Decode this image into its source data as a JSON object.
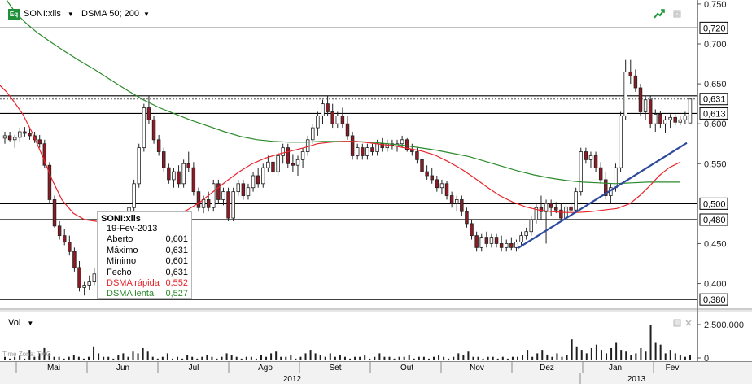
{
  "header": {
    "badge": "Eq",
    "symbol": "SONI:xlis",
    "indicator": "DSMA 50; 200"
  },
  "colors": {
    "up": "#ffffff",
    "down": "#8e1b24",
    "fast_ma": "#e8242a",
    "slow_ma": "#2a8a2a",
    "trendline": "#2e4a9e",
    "hline": "#000000",
    "volume": "#1f1f1f",
    "axis_bg": "#ffffff"
  },
  "tooltip": {
    "symbol": "SONI:xlis",
    "date": "19-Fev-2013",
    "rows": [
      {
        "label": "Aberto",
        "value": "0,601",
        "color": "#000000"
      },
      {
        "label": "Máximo",
        "value": "0,631",
        "color": "#000000"
      },
      {
        "label": "Mínimo",
        "value": "0,601",
        "color": "#000000"
      },
      {
        "label": "Fecho",
        "value": "0,631",
        "color": "#000000"
      },
      {
        "label": "DSMA rápida",
        "value": "0,552",
        "color": "#e8242a"
      },
      {
        "label": "DSMA lenta",
        "value": "0,527",
        "color": "#2a8a2a"
      }
    ]
  },
  "volume_panel": {
    "title": "Vol",
    "ticks": [
      "2.500.000",
      "0"
    ]
  },
  "timezone_label": "Time Zone: TMG",
  "chart_data": {
    "type": "candlestick",
    "price_axis": {
      "ylim": [
        0.37,
        0.755
      ],
      "ticks": [
        {
          "v": 0.75,
          "label": "0,750"
        },
        {
          "v": 0.7,
          "label": "0,700"
        },
        {
          "v": 0.65,
          "label": "0,650"
        },
        {
          "v": 0.6,
          "label": "0,600"
        },
        {
          "v": 0.55,
          "label": "0,550"
        },
        {
          "v": 0.45,
          "label": "0,450"
        },
        {
          "v": 0.4,
          "label": "0,400"
        }
      ],
      "boxed_labels": [
        {
          "v": 0.72,
          "label": "0,720"
        },
        {
          "v": 0.631,
          "label": "0,631"
        },
        {
          "v": 0.613,
          "label": "0,613"
        },
        {
          "v": 0.5,
          "label": "0,500"
        },
        {
          "v": 0.48,
          "label": "0,480"
        },
        {
          "v": 0.38,
          "label": "0,380"
        }
      ]
    },
    "horizontal_lines": [
      0.72,
      0.635,
      0.613,
      0.5,
      0.48,
      0.38
    ],
    "dotted_line": 0.631,
    "months": [
      "Mai",
      "Jun",
      "Jul",
      "Ago",
      "Set",
      "Out",
      "Nov",
      "Dez",
      "Jan",
      "Fev"
    ],
    "years": [
      "2012",
      "2013"
    ],
    "candles": [
      [
        0.582,
        0.59,
        0.575,
        0.585
      ],
      [
        0.585,
        0.59,
        0.578,
        0.58
      ],
      [
        0.58,
        0.586,
        0.57,
        0.583
      ],
      [
        0.583,
        0.595,
        0.578,
        0.59
      ],
      [
        0.59,
        0.596,
        0.584,
        0.588
      ],
      [
        0.588,
        0.593,
        0.58,
        0.585
      ],
      [
        0.585,
        0.59,
        0.576,
        0.58
      ],
      [
        0.58,
        0.586,
        0.57,
        0.575
      ],
      [
        0.575,
        0.58,
        0.545,
        0.548
      ],
      [
        0.548,
        0.552,
        0.5,
        0.505
      ],
      [
        0.505,
        0.51,
        0.47,
        0.472
      ],
      [
        0.472,
        0.478,
        0.455,
        0.46
      ],
      [
        0.46,
        0.468,
        0.448,
        0.452
      ],
      [
        0.452,
        0.46,
        0.435,
        0.44
      ],
      [
        0.44,
        0.445,
        0.415,
        0.42
      ],
      [
        0.42,
        0.428,
        0.39,
        0.395
      ],
      [
        0.395,
        0.402,
        0.385,
        0.398
      ],
      [
        0.398,
        0.41,
        0.392,
        0.402
      ],
      [
        0.402,
        0.42,
        0.398,
        0.412
      ],
      [
        0.412,
        0.425,
        0.405,
        0.408
      ],
      [
        0.408,
        0.44,
        0.405,
        0.435
      ],
      [
        0.435,
        0.462,
        0.43,
        0.455
      ],
      [
        0.455,
        0.47,
        0.44,
        0.445
      ],
      [
        0.445,
        0.468,
        0.44,
        0.462
      ],
      [
        0.462,
        0.482,
        0.455,
        0.475
      ],
      [
        0.475,
        0.5,
        0.47,
        0.495
      ],
      [
        0.495,
        0.53,
        0.49,
        0.525
      ],
      [
        0.525,
        0.575,
        0.52,
        0.57
      ],
      [
        0.57,
        0.625,
        0.565,
        0.62
      ],
      [
        0.62,
        0.635,
        0.6,
        0.605
      ],
      [
        0.605,
        0.61,
        0.575,
        0.58
      ],
      [
        0.58,
        0.586,
        0.56,
        0.565
      ],
      [
        0.565,
        0.57,
        0.54,
        0.545
      ],
      [
        0.545,
        0.55,
        0.525,
        0.53
      ],
      [
        0.53,
        0.545,
        0.52,
        0.54
      ],
      [
        0.54,
        0.548,
        0.52,
        0.525
      ],
      [
        0.525,
        0.555,
        0.52,
        0.55
      ],
      [
        0.55,
        0.565,
        0.54,
        0.545
      ],
      [
        0.545,
        0.552,
        0.51,
        0.515
      ],
      [
        0.515,
        0.52,
        0.49,
        0.495
      ],
      [
        0.495,
        0.51,
        0.488,
        0.505
      ],
      [
        0.505,
        0.515,
        0.49,
        0.495
      ],
      [
        0.495,
        0.53,
        0.49,
        0.525
      ],
      [
        0.525,
        0.53,
        0.5,
        0.505
      ],
      [
        0.505,
        0.52,
        0.498,
        0.515
      ],
      [
        0.515,
        0.52,
        0.478,
        0.482
      ],
      [
        0.482,
        0.52,
        0.478,
        0.515
      ],
      [
        0.515,
        0.53,
        0.51,
        0.525
      ],
      [
        0.525,
        0.53,
        0.505,
        0.51
      ],
      [
        0.51,
        0.525,
        0.505,
        0.52
      ],
      [
        0.52,
        0.54,
        0.515,
        0.535
      ],
      [
        0.535,
        0.545,
        0.52,
        0.525
      ],
      [
        0.525,
        0.55,
        0.52,
        0.545
      ],
      [
        0.545,
        0.56,
        0.54,
        0.552
      ],
      [
        0.552,
        0.56,
        0.535,
        0.54
      ],
      [
        0.54,
        0.565,
        0.535,
        0.56
      ],
      [
        0.56,
        0.575,
        0.55,
        0.57
      ],
      [
        0.57,
        0.575,
        0.545,
        0.55
      ],
      [
        0.55,
        0.562,
        0.54,
        0.548
      ],
      [
        0.548,
        0.56,
        0.535,
        0.555
      ],
      [
        0.555,
        0.57,
        0.545,
        0.565
      ],
      [
        0.565,
        0.585,
        0.56,
        0.58
      ],
      [
        0.58,
        0.6,
        0.575,
        0.595
      ],
      [
        0.595,
        0.615,
        0.585,
        0.61
      ],
      [
        0.61,
        0.63,
        0.6,
        0.625
      ],
      [
        0.625,
        0.635,
        0.61,
        0.615
      ],
      [
        0.615,
        0.625,
        0.595,
        0.6
      ],
      [
        0.6,
        0.615,
        0.595,
        0.61
      ],
      [
        0.61,
        0.62,
        0.595,
        0.6
      ],
      [
        0.6,
        0.61,
        0.58,
        0.585
      ],
      [
        0.585,
        0.59,
        0.555,
        0.56
      ],
      [
        0.56,
        0.575,
        0.555,
        0.57
      ],
      [
        0.57,
        0.575,
        0.555,
        0.56
      ],
      [
        0.56,
        0.575,
        0.555,
        0.57
      ],
      [
        0.57,
        0.575,
        0.56,
        0.565
      ],
      [
        0.565,
        0.58,
        0.56,
        0.575
      ],
      [
        0.575,
        0.582,
        0.565,
        0.57
      ],
      [
        0.57,
        0.58,
        0.565,
        0.575
      ],
      [
        0.575,
        0.58,
        0.568,
        0.572
      ],
      [
        0.572,
        0.58,
        0.565,
        0.575
      ],
      [
        0.575,
        0.585,
        0.57,
        0.58
      ],
      [
        0.58,
        0.582,
        0.565,
        0.568
      ],
      [
        0.568,
        0.575,
        0.56,
        0.565
      ],
      [
        0.565,
        0.57,
        0.55,
        0.555
      ],
      [
        0.555,
        0.56,
        0.535,
        0.54
      ],
      [
        0.54,
        0.548,
        0.53,
        0.535
      ],
      [
        0.535,
        0.545,
        0.525,
        0.53
      ],
      [
        0.53,
        0.535,
        0.515,
        0.52
      ],
      [
        0.52,
        0.53,
        0.512,
        0.525
      ],
      [
        0.525,
        0.528,
        0.505,
        0.51
      ],
      [
        0.51,
        0.515,
        0.495,
        0.5
      ],
      [
        0.5,
        0.51,
        0.49,
        0.505
      ],
      [
        0.505,
        0.51,
        0.485,
        0.49
      ],
      [
        0.49,
        0.495,
        0.47,
        0.475
      ],
      [
        0.475,
        0.48,
        0.455,
        0.46
      ],
      [
        0.46,
        0.465,
        0.44,
        0.445
      ],
      [
        0.445,
        0.462,
        0.44,
        0.458
      ],
      [
        0.458,
        0.465,
        0.445,
        0.45
      ],
      [
        0.45,
        0.462,
        0.445,
        0.458
      ],
      [
        0.458,
        0.462,
        0.445,
        0.45
      ],
      [
        0.45,
        0.46,
        0.44,
        0.445
      ],
      [
        0.445,
        0.455,
        0.44,
        0.45
      ],
      [
        0.45,
        0.458,
        0.442,
        0.445
      ],
      [
        0.445,
        0.455,
        0.44,
        0.452
      ],
      [
        0.452,
        0.465,
        0.448,
        0.46
      ],
      [
        0.46,
        0.47,
        0.455,
        0.465
      ],
      [
        0.465,
        0.485,
        0.46,
        0.48
      ],
      [
        0.48,
        0.5,
        0.475,
        0.495
      ],
      [
        0.495,
        0.51,
        0.48,
        0.49
      ],
      [
        0.49,
        0.505,
        0.45,
        0.5
      ],
      [
        0.5,
        0.505,
        0.485,
        0.495
      ],
      [
        0.495,
        0.502,
        0.488,
        0.492
      ],
      [
        0.492,
        0.5,
        0.478,
        0.482
      ],
      [
        0.482,
        0.5,
        0.478,
        0.496
      ],
      [
        0.496,
        0.502,
        0.488,
        0.492
      ],
      [
        0.492,
        0.52,
        0.488,
        0.515
      ],
      [
        0.515,
        0.57,
        0.51,
        0.565
      ],
      [
        0.565,
        0.57,
        0.55,
        0.555
      ],
      [
        0.555,
        0.565,
        0.545,
        0.56
      ],
      [
        0.56,
        0.565,
        0.54,
        0.545
      ],
      [
        0.545,
        0.552,
        0.525,
        0.53
      ],
      [
        0.53,
        0.54,
        0.505,
        0.51
      ],
      [
        0.51,
        0.525,
        0.5,
        0.52
      ],
      [
        0.52,
        0.55,
        0.515,
        0.545
      ],
      [
        0.545,
        0.615,
        0.54,
        0.61
      ],
      [
        0.61,
        0.68,
        0.605,
        0.665
      ],
      [
        0.665,
        0.68,
        0.65,
        0.66
      ],
      [
        0.66,
        0.668,
        0.64,
        0.645
      ],
      [
        0.645,
        0.65,
        0.61,
        0.615
      ],
      [
        0.615,
        0.635,
        0.605,
        0.63
      ],
      [
        0.63,
        0.635,
        0.595,
        0.6
      ],
      [
        0.6,
        0.618,
        0.59,
        0.612
      ],
      [
        0.612,
        0.616,
        0.595,
        0.6
      ],
      [
        0.6,
        0.61,
        0.588,
        0.605
      ],
      [
        0.605,
        0.612,
        0.595,
        0.608
      ],
      [
        0.608,
        0.612,
        0.598,
        0.602
      ],
      [
        0.602,
        0.61,
        0.598,
        0.605
      ],
      [
        0.605,
        0.615,
        0.6,
        0.61
      ],
      [
        0.601,
        0.631,
        0.601,
        0.631
      ]
    ],
    "volume": [
      0.1,
      0.05,
      0.1,
      0.15,
      0.05,
      0.3,
      0.1,
      0.2,
      0.35,
      0.2,
      0.1,
      0.1,
      0.05,
      0.1,
      0.15,
      0.1,
      0.05,
      0.1,
      0.4,
      0.2,
      0.1,
      0.1,
      0.05,
      0.15,
      0.2,
      0.1,
      0.25,
      0.2,
      0.35,
      0.25,
      0.1,
      0.05,
      0.1,
      0.2,
      0.05,
      0.1,
      0.05,
      0.15,
      0.1,
      0.05,
      0.1,
      0.15,
      0.1,
      0.05,
      0.1,
      0.2,
      0.15,
      0.1,
      0.05,
      0.1,
      0.1,
      0.05,
      0.15,
      0.1,
      0.2,
      0.25,
      0.1,
      0.1,
      0.15,
      0.05,
      0.1,
      0.2,
      0.3,
      0.2,
      0.15,
      0.1,
      0.2,
      0.1,
      0.15,
      0.1,
      0.05,
      0.1,
      0.1,
      0.15,
      0.05,
      0.1,
      0.2,
      0.1,
      0.1,
      0.05,
      0.1,
      0.1,
      0.15,
      0.05,
      0.1,
      0.1,
      0.05,
      0.1,
      0.15,
      0.1,
      0.05,
      0.1,
      0.2,
      0.15,
      0.25,
      0.1,
      0.1,
      0.05,
      0.1,
      0.1,
      0.05,
      0.1,
      0.05,
      0.1,
      0.1,
      0.15,
      0.3,
      0.1,
      0.2,
      0.3,
      0.15,
      0.1,
      0.2,
      0.1,
      0.15,
      0.6,
      0.4,
      0.3,
      0.2,
      0.35,
      0.45,
      0.3,
      0.2,
      0.35,
      0.5,
      0.3,
      0.25,
      0.15,
      0.2,
      0.35,
      0.25,
      1.0,
      0.5,
      0.45,
      0.2,
      0.3,
      0.2,
      0.15,
      0.1,
      0.15
    ],
    "volume_max": 4000000,
    "fast_ma": [
      [
        0.648,
        0
      ],
      [
        0.64,
        8
      ],
      [
        0.628,
        17
      ],
      [
        0.612,
        28
      ],
      [
        0.588,
        40
      ],
      [
        0.56,
        52
      ],
      [
        0.53,
        64
      ],
      [
        0.505,
        76
      ],
      [
        0.488,
        90
      ],
      [
        0.48,
        104
      ],
      [
        0.478,
        118
      ],
      [
        0.477,
        134
      ],
      [
        0.477,
        150
      ],
      [
        0.477,
        166
      ],
      [
        0.478,
        182
      ],
      [
        0.481,
        198
      ],
      [
        0.485,
        214
      ],
      [
        0.492,
        230
      ],
      [
        0.502,
        246
      ],
      [
        0.515,
        262
      ],
      [
        0.528,
        278
      ],
      [
        0.54,
        294
      ],
      [
        0.55,
        310
      ],
      [
        0.557,
        326
      ],
      [
        0.562,
        342
      ],
      [
        0.566,
        358
      ],
      [
        0.57,
        374
      ],
      [
        0.575,
        390
      ],
      [
        0.577,
        406
      ],
      [
        0.578,
        422
      ],
      [
        0.578,
        438
      ],
      [
        0.576,
        454
      ],
      [
        0.574,
        470
      ],
      [
        0.572,
        486
      ],
      [
        0.569,
        502
      ],
      [
        0.566,
        518
      ],
      [
        0.561,
        534
      ],
      [
        0.553,
        550
      ],
      [
        0.544,
        566
      ],
      [
        0.533,
        582
      ],
      [
        0.521,
        598
      ],
      [
        0.51,
        614
      ],
      [
        0.502,
        630
      ],
      [
        0.496,
        646
      ],
      [
        0.492,
        662
      ],
      [
        0.49,
        678
      ],
      [
        0.489,
        694
      ],
      [
        0.489,
        710
      ],
      [
        0.49,
        726
      ],
      [
        0.492,
        742
      ],
      [
        0.494,
        758
      ],
      [
        0.5,
        774
      ],
      [
        0.51,
        786
      ],
      [
        0.522,
        798
      ],
      [
        0.535,
        810
      ],
      [
        0.545,
        822
      ],
      [
        0.552,
        836
      ]
    ],
    "slow_ma": [
      [
        0.77,
        0
      ],
      [
        0.752,
        10
      ],
      [
        0.738,
        20
      ],
      [
        0.726,
        32
      ],
      [
        0.714,
        46
      ],
      [
        0.704,
        60
      ],
      [
        0.693,
        76
      ],
      [
        0.68,
        96
      ],
      [
        0.668,
        116
      ],
      [
        0.655,
        136
      ],
      [
        0.642,
        156
      ],
      [
        0.63,
        176
      ],
      [
        0.62,
        196
      ],
      [
        0.612,
        216
      ],
      [
        0.604,
        236
      ],
      [
        0.597,
        256
      ],
      [
        0.59,
        276
      ],
      [
        0.584,
        296
      ],
      [
        0.58,
        316
      ],
      [
        0.578,
        336
      ],
      [
        0.577,
        356
      ],
      [
        0.577,
        376
      ],
      [
        0.578,
        396
      ],
      [
        0.578,
        416
      ],
      [
        0.578,
        436
      ],
      [
        0.577,
        456
      ],
      [
        0.575,
        476
      ],
      [
        0.573,
        496
      ],
      [
        0.57,
        516
      ],
      [
        0.567,
        536
      ],
      [
        0.563,
        556
      ],
      [
        0.559,
        576
      ],
      [
        0.553,
        596
      ],
      [
        0.547,
        616
      ],
      [
        0.541,
        636
      ],
      [
        0.536,
        656
      ],
      [
        0.532,
        676
      ],
      [
        0.529,
        696
      ],
      [
        0.527,
        716
      ],
      [
        0.526,
        736
      ],
      [
        0.525,
        756
      ],
      [
        0.526,
        776
      ],
      [
        0.527,
        796
      ],
      [
        0.527,
        816
      ],
      [
        0.527,
        836
      ]
    ],
    "trendline": [
      [
        0.444,
        636
      ],
      [
        0.576,
        844
      ]
    ]
  }
}
